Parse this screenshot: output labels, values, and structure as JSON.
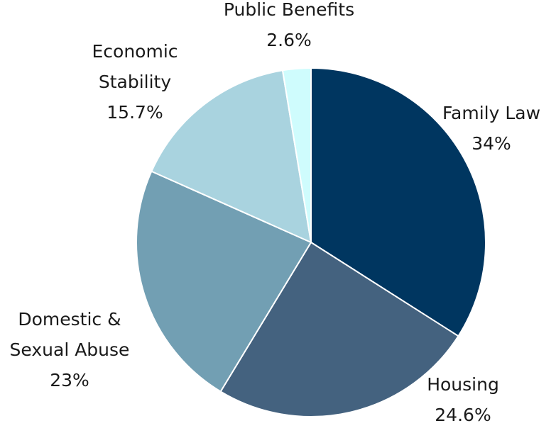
{
  "chart_data": {
    "type": "pie",
    "title": "",
    "categories": [
      "Family Law",
      "Housing",
      "Domestic & Sexual Abuse",
      "Economic Stability",
      "Public Benefits"
    ],
    "values": [
      34,
      24.6,
      23,
      15.7,
      2.6
    ],
    "units": "%",
    "start_angle_deg": 0,
    "direction": "clockwise",
    "slices": [
      {
        "name": "Family Law",
        "label_lines": [
          "Family Law"
        ],
        "value": 34,
        "value_label": "34%",
        "color": "#003660"
      },
      {
        "name": "Housing",
        "label_lines": [
          "Housing"
        ],
        "value": 24.6,
        "value_label": "24.6%",
        "color": "#44627f"
      },
      {
        "name": "Domestic & Sexual Abuse",
        "label_lines": [
          "Domestic &",
          "Sexual Abuse"
        ],
        "value": 23,
        "value_label": "23%",
        "color": "#729fb3"
      },
      {
        "name": "Economic Stability",
        "label_lines": [
          "Economic",
          "Stability"
        ],
        "value": 15.7,
        "value_label": "15.7%",
        "color": "#a9d3df"
      },
      {
        "name": "Public Benefits",
        "label_lines": [
          "Public Benefits"
        ],
        "value": 2.6,
        "value_label": "2.6%",
        "color": "#cffcfd"
      }
    ],
    "legend": "none"
  }
}
